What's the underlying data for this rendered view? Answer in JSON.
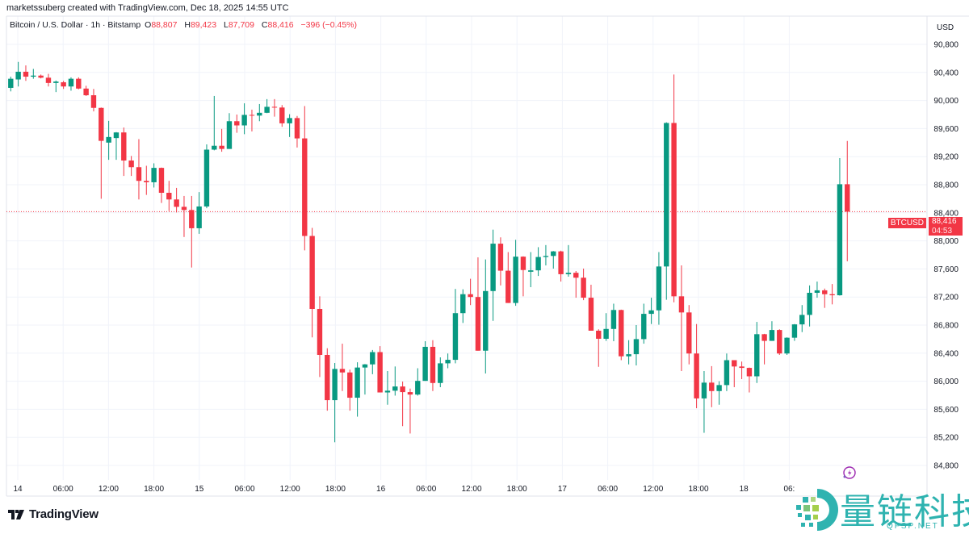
{
  "header": {
    "credit": "marketssuberg created with TradingView.com, Dec 18, 2025 14:55 UTC",
    "symbol_desc": "Bitcoin / U.S. Dollar · 1h · Bitstamp",
    "o_label": "O",
    "o_value": "88,807",
    "h_label": "H",
    "h_value": "89,423",
    "l_label": "L",
    "l_value": "87,709",
    "c_label": "C",
    "c_value": "88,416",
    "change": "−396 (−0.45%)"
  },
  "price_axis": {
    "currency": "USD",
    "ticks": [
      "84,800",
      "85,200",
      "85,600",
      "86,000",
      "86,400",
      "86,800",
      "87,200",
      "87,600",
      "88,000",
      "88,400",
      "88,800",
      "89,200",
      "89,600",
      "90,000",
      "90,400",
      "90,800"
    ],
    "symbol_badge": "BTCUSD",
    "last_price": "88,416",
    "countdown": "04:53"
  },
  "time_axis": {
    "ticks": [
      "14",
      "06:00",
      "12:00",
      "18:00",
      "15",
      "06:00",
      "12:00",
      "18:00",
      "16",
      "06:00",
      "12:00",
      "18:00",
      "17",
      "06:00",
      "12:00",
      "18:00",
      "18",
      "06:"
    ]
  },
  "colors": {
    "up": "#089981",
    "down": "#f23645",
    "grid": "#f0f3fa",
    "last_price_line": "#f23645"
  },
  "footer": {
    "brand": "TradingView"
  },
  "watermark": {
    "name_cn": "量链科技",
    "site": "QFSP.NET"
  },
  "icons": {
    "replay": "lightning-circle-icon"
  },
  "chart_data": {
    "type": "candlestick",
    "title": "Bitcoin / U.S. Dollar · 1h · Bitstamp",
    "interval": "1h",
    "x_start": "2025-12-13 23:00",
    "y_ticks": [
      84800,
      85200,
      85600,
      86000,
      86400,
      86800,
      87200,
      87600,
      88000,
      88400,
      88800,
      89200,
      89600,
      90000,
      90400,
      90800
    ],
    "last_price": 88416,
    "grid": true,
    "ohlc": [
      [
        90180,
        90340,
        90130,
        90310
      ],
      [
        90300,
        90550,
        90200,
        90410
      ],
      [
        90410,
        90500,
        90280,
        90340
      ],
      [
        90340,
        90450,
        90310,
        90355
      ],
      [
        90355,
        90370,
        90315,
        90325
      ],
      [
        90325,
        90380,
        90200,
        90250
      ],
      [
        90250,
        90285,
        90120,
        90270
      ],
      [
        90260,
        90280,
        90165,
        90200
      ],
      [
        90200,
        90330,
        90140,
        90310
      ],
      [
        90310,
        90330,
        90160,
        90170
      ],
      [
        90170,
        90210,
        90065,
        90075
      ],
      [
        90075,
        90165,
        89845,
        89895
      ],
      [
        89895,
        89900,
        88600,
        89425
      ],
      [
        89400,
        89710,
        89155,
        89480
      ],
      [
        89465,
        89550,
        89155,
        89545
      ],
      [
        89545,
        89615,
        88925,
        89145
      ],
      [
        89145,
        89210,
        88925,
        89050
      ],
      [
        89050,
        89450,
        88590,
        88855
      ],
      [
        88855,
        89070,
        88655,
        88835
      ],
      [
        88835,
        89105,
        88760,
        89040
      ],
      [
        89040,
        89045,
        88540,
        88685
      ],
      [
        88685,
        88855,
        88425,
        88590
      ],
      [
        88590,
        88755,
        88405,
        88485
      ],
      [
        88485,
        88640,
        88055,
        88440
      ],
      [
        88440,
        88640,
        87620,
        88180
      ],
      [
        88180,
        88695,
        88100,
        88490
      ],
      [
        88490,
        89375,
        88465,
        89300
      ],
      [
        89300,
        90065,
        89290,
        89355
      ],
      [
        89355,
        89595,
        89270,
        89310
      ],
      [
        89310,
        89820,
        89310,
        89705
      ],
      [
        89705,
        89800,
        89540,
        89645
      ],
      [
        89645,
        89960,
        89520,
        89795
      ],
      [
        89795,
        89870,
        89560,
        89785
      ],
      [
        89785,
        89950,
        89705,
        89825
      ],
      [
        89825,
        90020,
        89820,
        89910
      ],
      [
        89910,
        90020,
        89770,
        89900
      ],
      [
        89900,
        89935,
        89625,
        89675
      ],
      [
        89675,
        89805,
        89480,
        89750
      ],
      [
        89750,
        89780,
        89330,
        89460
      ],
      [
        89460,
        89920,
        87865,
        88070
      ],
      [
        88070,
        88185,
        86625,
        87030
      ],
      [
        87030,
        87210,
        86060,
        86375
      ],
      [
        86375,
        86470,
        85580,
        85730
      ],
      [
        85730,
        86260,
        85130,
        86175
      ],
      [
        86175,
        86535,
        85860,
        86125
      ],
      [
        86125,
        86165,
        85580,
        85765
      ],
      [
        85765,
        86270,
        85495,
        86195
      ],
      [
        86195,
        86245,
        85810,
        86240
      ],
      [
        86240,
        86445,
        86100,
        86415
      ],
      [
        86415,
        86500,
        85840,
        85840
      ],
      [
        85840,
        86145,
        85665,
        85865
      ],
      [
        85865,
        86210,
        85795,
        85925
      ],
      [
        85925,
        85995,
        85360,
        85845
      ],
      [
        85845,
        85895,
        85255,
        85810
      ],
      [
        85810,
        86185,
        85795,
        86005
      ],
      [
        86005,
        86570,
        86005,
        86490
      ],
      [
        86490,
        86585,
        85860,
        85975
      ],
      [
        85975,
        86340,
        85915,
        86255
      ],
      [
        86255,
        86395,
        86185,
        86305
      ],
      [
        86305,
        87315,
        86255,
        86970
      ],
      [
        86970,
        87310,
        86830,
        87240
      ],
      [
        87240,
        87460,
        87085,
        87200
      ],
      [
        87200,
        87765,
        86435,
        86435
      ],
      [
        86435,
        87735,
        86110,
        87285
      ],
      [
        87285,
        88160,
        86860,
        87960
      ],
      [
        87960,
        88050,
        87365,
        87575
      ],
      [
        87575,
        87840,
        87115,
        87115
      ],
      [
        87115,
        88015,
        87075,
        87775
      ],
      [
        87775,
        87780,
        87210,
        87585
      ],
      [
        87560,
        87840,
        87340,
        87580
      ],
      [
        87580,
        87910,
        87500,
        87770
      ],
      [
        87770,
        87940,
        87650,
        87785
      ],
      [
        87785,
        87855,
        87605,
        87850
      ],
      [
        87850,
        87860,
        87420,
        87525
      ],
      [
        87525,
        87940,
        87490,
        87545
      ],
      [
        87545,
        87570,
        87190,
        87475
      ],
      [
        87475,
        87605,
        87155,
        87190
      ],
      [
        87190,
        87375,
        86720,
        86720
      ],
      [
        86720,
        86740,
        86205,
        86605
      ],
      [
        86605,
        86970,
        86575,
        86745
      ],
      [
        86745,
        87105,
        86570,
        87015
      ],
      [
        87015,
        87020,
        86300,
        86355
      ],
      [
        86355,
        86585,
        86240,
        86385
      ],
      [
        86385,
        86800,
        86225,
        86600
      ],
      [
        86600,
        87105,
        86535,
        86960
      ],
      [
        86960,
        87190,
        86815,
        87010
      ],
      [
        87010,
        87840,
        86805,
        87635
      ],
      [
        87635,
        89690,
        87160,
        89680
      ],
      [
        89680,
        90370,
        87125,
        87210
      ],
      [
        87210,
        87650,
        86145,
        86980
      ],
      [
        86980,
        87085,
        86240,
        86395
      ],
      [
        86395,
        86815,
        85615,
        85755
      ],
      [
        85755,
        86145,
        85265,
        85980
      ],
      [
        85980,
        86215,
        85630,
        85860
      ],
      [
        85860,
        86000,
        85665,
        85945
      ],
      [
        85945,
        86395,
        85860,
        86300
      ],
      [
        86300,
        86300,
        85915,
        86210
      ],
      [
        86210,
        86280,
        86030,
        86190
      ],
      [
        86190,
        86195,
        85840,
        86070
      ],
      [
        86070,
        86845,
        85975,
        86670
      ],
      [
        86670,
        86675,
        86240,
        86575
      ],
      [
        86575,
        86855,
        86575,
        86730
      ],
      [
        86730,
        86740,
        86375,
        86395
      ],
      [
        86395,
        86625,
        86375,
        86620
      ],
      [
        86620,
        86815,
        86575,
        86810
      ],
      [
        86810,
        87085,
        86700,
        86945
      ],
      [
        86945,
        87365,
        86780,
        87260
      ],
      [
        87260,
        87420,
        87190,
        87295
      ],
      [
        87295,
        87320,
        87045,
        87240
      ],
      [
        87240,
        87385,
        87095,
        87225
      ],
      [
        87225,
        89180,
        87220,
        88807
      ],
      [
        88807,
        89423,
        87709,
        88416
      ]
    ]
  }
}
